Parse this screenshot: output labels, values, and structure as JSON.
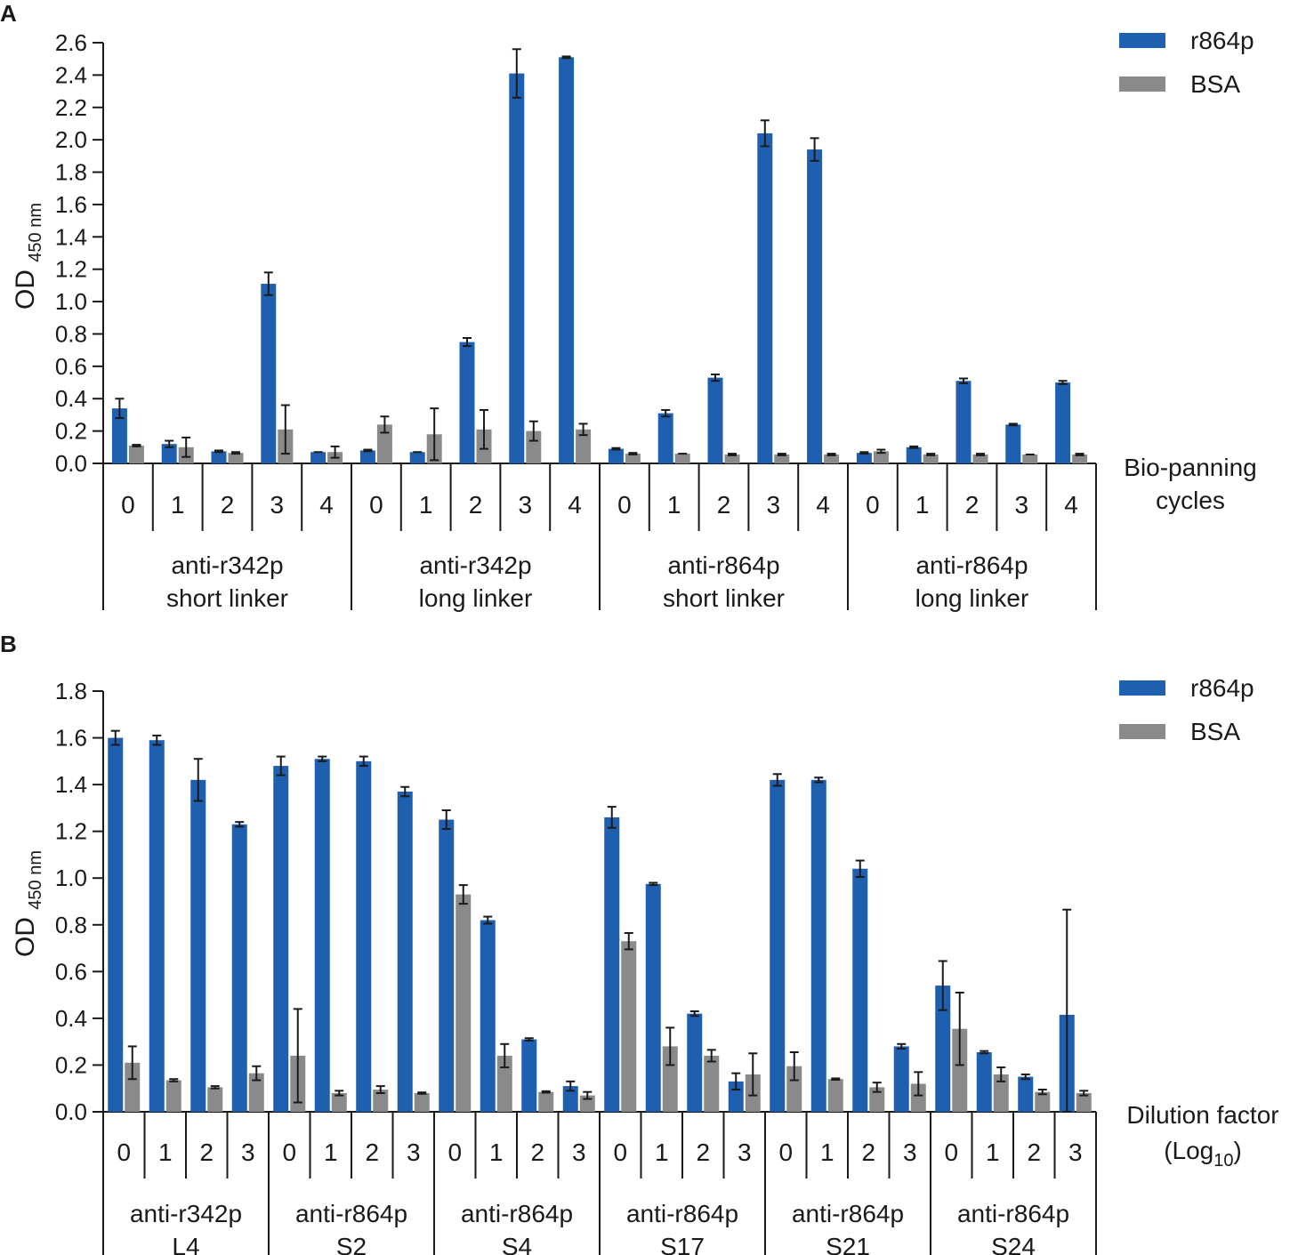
{
  "chart_data": [
    {
      "panel": "A",
      "type": "bar",
      "ylabel": "OD",
      "ylabel_sub": "450 nm",
      "ylim": [
        0,
        2.6
      ],
      "yticks": [
        "0.0",
        "0.2",
        "0.4",
        "0.6",
        "0.8",
        "1.0",
        "1.2",
        "1.4",
        "1.6",
        "1.8",
        "2.0",
        "2.2",
        "2.4",
        "2.6"
      ],
      "xlabel_lines": [
        "Bio-panning",
        "cycles"
      ],
      "legend": [
        {
          "name": "r864p",
          "color": "#1f5fb0"
        },
        {
          "name": "BSA",
          "color": "#8a8a8a"
        }
      ],
      "groups": [
        {
          "label": [
            "anti-r342p",
            "short linker"
          ],
          "categories": [
            "0",
            "1",
            "2",
            "3",
            "4"
          ],
          "r864p": [
            0.34,
            0.12,
            0.075,
            1.11,
            0.07
          ],
          "r864p_err": [
            0.06,
            0.02,
            0.005,
            0.07,
            0.0
          ],
          "BSA": [
            0.11,
            0.1,
            0.065,
            0.21,
            0.07
          ],
          "BSA_err": [
            0.005,
            0.06,
            0.005,
            0.15,
            0.035
          ]
        },
        {
          "label": [
            "anti-r342p",
            "long linker"
          ],
          "categories": [
            "0",
            "1",
            "2",
            "3",
            "4"
          ],
          "r864p": [
            0.08,
            0.07,
            0.75,
            2.41,
            2.51
          ],
          "r864p_err": [
            0.005,
            0.0,
            0.025,
            0.15,
            0.005
          ],
          "BSA": [
            0.24,
            0.18,
            0.21,
            0.2,
            0.21
          ],
          "BSA_err": [
            0.05,
            0.16,
            0.12,
            0.06,
            0.035
          ]
        },
        {
          "label": [
            "anti-r864p",
            "short linker"
          ],
          "categories": [
            "0",
            "1",
            "2",
            "3",
            "4"
          ],
          "r864p": [
            0.09,
            0.31,
            0.53,
            2.04,
            1.94
          ],
          "r864p_err": [
            0.005,
            0.02,
            0.02,
            0.08,
            0.07
          ],
          "BSA": [
            0.06,
            0.06,
            0.055,
            0.055,
            0.055
          ],
          "BSA_err": [
            0.005,
            0.0,
            0.005,
            0.005,
            0.005
          ]
        },
        {
          "label": [
            "anti-r864p",
            "long linker"
          ],
          "categories": [
            "0",
            "1",
            "2",
            "3",
            "4"
          ],
          "r864p": [
            0.065,
            0.1,
            0.51,
            0.24,
            0.5
          ],
          "r864p_err": [
            0.005,
            0.005,
            0.015,
            0.005,
            0.01
          ],
          "BSA": [
            0.075,
            0.055,
            0.055,
            0.055,
            0.055
          ],
          "BSA_err": [
            0.01,
            0.005,
            0.005,
            0.0,
            0.005
          ]
        }
      ]
    },
    {
      "panel": "B",
      "type": "bar",
      "ylabel": "OD",
      "ylabel_sub": "450 nm",
      "ylim": [
        0,
        1.8
      ],
      "yticks": [
        "0.0",
        "0.2",
        "0.4",
        "0.6",
        "0.8",
        "1.0",
        "1.2",
        "1.4",
        "1.6",
        "1.8"
      ],
      "xlabel_lines": [
        "Dilution factor",
        "(Log",
        "10",
        ")"
      ],
      "legend": [
        {
          "name": "r864p",
          "color": "#1f5fb0"
        },
        {
          "name": "BSA",
          "color": "#8a8a8a"
        }
      ],
      "groups": [
        {
          "label": [
            "anti-r342p",
            "L4"
          ],
          "categories": [
            "0",
            "1",
            "2",
            "3"
          ],
          "r864p": [
            1.6,
            1.59,
            1.42,
            1.23
          ],
          "r864p_err": [
            0.03,
            0.02,
            0.09,
            0.01
          ],
          "BSA": [
            0.21,
            0.135,
            0.105,
            0.165
          ],
          "BSA_err": [
            0.07,
            0.005,
            0.005,
            0.03
          ]
        },
        {
          "label": [
            "anti-r864p",
            "S2"
          ],
          "categories": [
            "0",
            "1",
            "2",
            "3"
          ],
          "r864p": [
            1.48,
            1.51,
            1.5,
            1.37
          ],
          "r864p_err": [
            0.04,
            0.01,
            0.02,
            0.02
          ],
          "BSA": [
            0.24,
            0.08,
            0.095,
            0.08
          ],
          "BSA_err": [
            0.2,
            0.01,
            0.015,
            0.003
          ]
        },
        {
          "label": [
            "anti-r864p",
            "S4"
          ],
          "categories": [
            "0",
            "1",
            "2",
            "3"
          ],
          "r864p": [
            1.25,
            0.82,
            0.31,
            0.11
          ],
          "r864p_err": [
            0.04,
            0.015,
            0.005,
            0.02
          ],
          "BSA": [
            0.93,
            0.24,
            0.085,
            0.07
          ],
          "BSA_err": [
            0.04,
            0.05,
            0.003,
            0.015
          ]
        },
        {
          "label": [
            "anti-r864p",
            "S17"
          ],
          "categories": [
            "0",
            "1",
            "2",
            "3"
          ],
          "r864p": [
            1.26,
            0.975,
            0.42,
            0.13
          ],
          "r864p_err": [
            0.045,
            0.005,
            0.01,
            0.035
          ],
          "BSA": [
            0.73,
            0.28,
            0.24,
            0.16
          ],
          "BSA_err": [
            0.035,
            0.08,
            0.025,
            0.09
          ]
        },
        {
          "label": [
            "anti-r864p",
            "S21"
          ],
          "categories": [
            "0",
            "1",
            "2",
            "3"
          ],
          "r864p": [
            1.42,
            1.42,
            1.04,
            0.28
          ],
          "r864p_err": [
            0.025,
            0.01,
            0.035,
            0.01
          ],
          "BSA": [
            0.195,
            0.14,
            0.105,
            0.12
          ],
          "BSA_err": [
            0.06,
            0.003,
            0.02,
            0.05
          ]
        },
        {
          "label": [
            "anti-r864p",
            "S24"
          ],
          "categories": [
            "0",
            "1",
            "2",
            "3"
          ],
          "r864p": [
            0.54,
            0.255,
            0.15,
            0.415
          ],
          "r864p_err": [
            0.105,
            0.005,
            0.01,
            0.45
          ],
          "BSA": [
            0.355,
            0.16,
            0.085,
            0.08
          ],
          "BSA_err": [
            0.155,
            0.03,
            0.01,
            0.01
          ]
        }
      ]
    }
  ]
}
